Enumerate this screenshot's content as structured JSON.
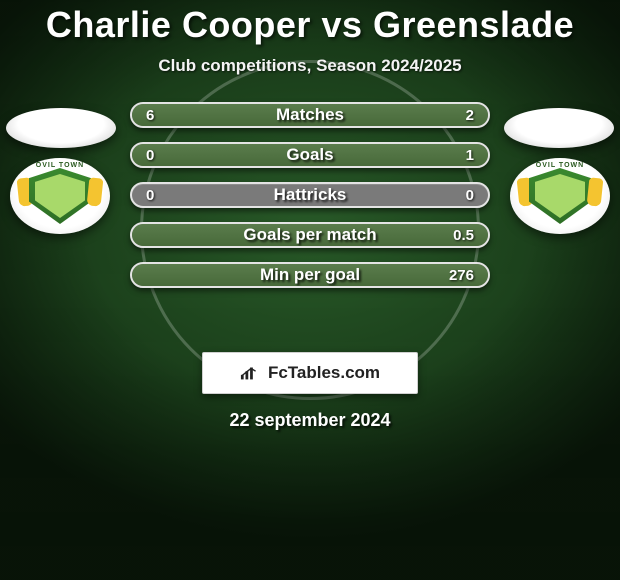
{
  "title": "Charlie Cooper vs Greenslade",
  "subtitle": "Club competitions, Season 2024/2025",
  "date": "22 september 2024",
  "brand": "FcTables.com",
  "colors": {
    "left_fill": "#486a3a",
    "right_fill": "#486a3a",
    "neutral_fill": "#7a7a7a",
    "bar_border": "#e4e4e4"
  },
  "crest_text": "OVIL TOWN",
  "stats": [
    {
      "label": "Matches",
      "left_val": "6",
      "right_val": "2",
      "left_pct": 75,
      "right_pct": 25
    },
    {
      "label": "Goals",
      "left_val": "0",
      "right_val": "1",
      "left_pct": 0,
      "right_pct": 100
    },
    {
      "label": "Hattricks",
      "left_val": "0",
      "right_val": "0",
      "left_pct": 0,
      "right_pct": 0
    },
    {
      "label": "Goals per match",
      "left_val": "",
      "right_val": "0.5",
      "left_pct": 0,
      "right_pct": 100
    },
    {
      "label": "Min per goal",
      "left_val": "",
      "right_val": "276",
      "left_pct": 0,
      "right_pct": 100
    }
  ]
}
